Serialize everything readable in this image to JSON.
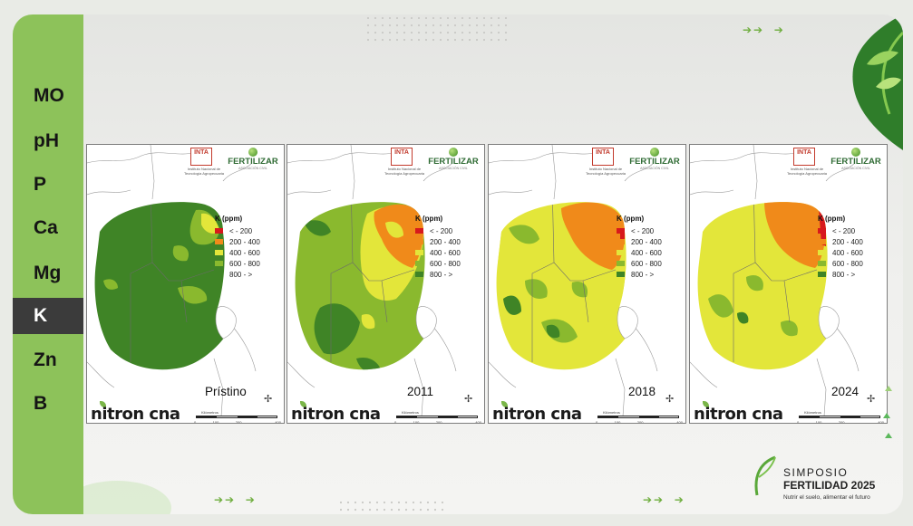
{
  "sidebar": {
    "items": [
      {
        "label": "MO",
        "active": false
      },
      {
        "label": "pH",
        "active": false
      },
      {
        "label": "P",
        "active": false
      },
      {
        "label": "Ca",
        "active": false
      },
      {
        "label": "Mg",
        "active": false
      },
      {
        "label": "K",
        "active": true
      },
      {
        "label": "Zn",
        "active": false
      },
      {
        "label": "B",
        "active": false
      }
    ]
  },
  "colors": {
    "sidebar": "#8dc25a",
    "active": "#3b3b3b",
    "c1": "#d7191c",
    "c2": "#f08a1a",
    "c3": "#e3e63a",
    "c4": "#8ab92e",
    "c5": "#3f8426"
  },
  "map_panel": {
    "inta_logo": "INTA",
    "inta_caption": "Instituto Nacional de Tecnología Agropecuaria",
    "fert_logo": "FERTILIZAR",
    "fert_sub": "ASOCIACIÓN CIVIL",
    "legend_title": "K (ppm)",
    "legend": [
      "< - 200",
      "200 - 400",
      "400 - 600",
      "600 - 800",
      "800 - >"
    ],
    "nitron_logo": "nitron cna",
    "scale_label": "Kilómetros",
    "scale_ticks": [
      "0",
      "100",
      "200",
      "",
      "400"
    ]
  },
  "maps": [
    {
      "label": "Prístino",
      "dominant": "800 - >"
    },
    {
      "label": "2011",
      "dominant": "600 - 800"
    },
    {
      "label": "2018",
      "dominant": "400 - 600"
    },
    {
      "label": "2024",
      "dominant": "400 - 600"
    }
  ],
  "symposium": {
    "line1": "SIMPOSIO",
    "line2": "FERTILIDAD 2025",
    "tagline": "Nutrir el suelo, alimentar el futuro"
  }
}
